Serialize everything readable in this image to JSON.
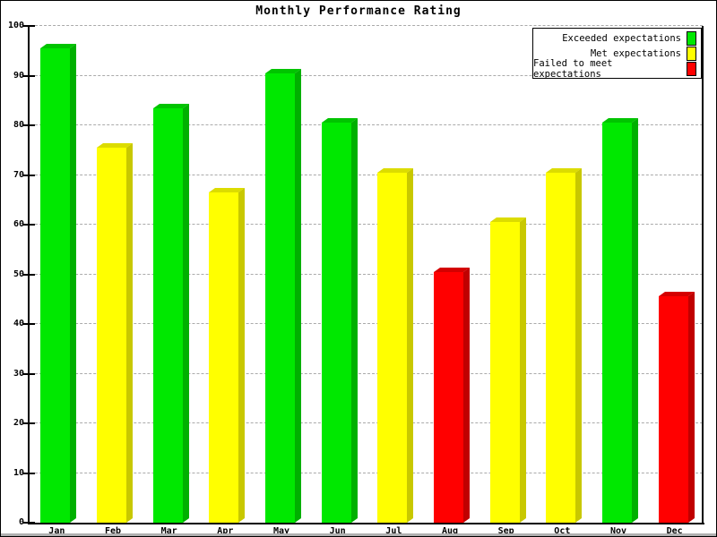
{
  "chart_data": {
    "type": "bar",
    "title": "Monthly Performance Rating",
    "categories": [
      "Jan",
      "Feb",
      "Mar",
      "Apr",
      "May",
      "Jun",
      "Jul",
      "Aug",
      "Sep",
      "Oct",
      "Nov",
      "Dec"
    ],
    "values": [
      95.5,
      75.5,
      83.5,
      66.5,
      90.5,
      80.5,
      70.5,
      50.5,
      60.5,
      70.5,
      80.5,
      45.5
    ],
    "levels": [
      "exceeded",
      "met",
      "exceeded",
      "met",
      "exceeded",
      "exceeded",
      "met",
      "failed",
      "met",
      "met",
      "exceeded",
      "failed"
    ],
    "ylim": [
      0,
      100
    ],
    "ytick_step": 10,
    "xlabel": "",
    "ylabel": "",
    "grid": "horizontal-dashed",
    "legend_position": "top-right",
    "bar_style": "3d-bevel"
  },
  "legend": {
    "items": [
      {
        "label": "Exceeded expectations",
        "level": "exceeded",
        "color": "#00e800"
      },
      {
        "label": "Met expectations",
        "level": "met",
        "color": "#ffff00"
      },
      {
        "label": "Failed to meet expectations",
        "level": "failed",
        "color": "#ff0000"
      }
    ]
  },
  "colors": {
    "exceeded": {
      "front": "#00e800",
      "top": "#00c400",
      "side": "#00b000"
    },
    "met": {
      "front": "#ffff00",
      "top": "#dcdc00",
      "side": "#c8c800"
    },
    "failed": {
      "front": "#ff0000",
      "top": "#d40000",
      "side": "#c00000"
    },
    "gridline": "#aaaaaa",
    "axis": "#000000",
    "text": "#000000"
  }
}
